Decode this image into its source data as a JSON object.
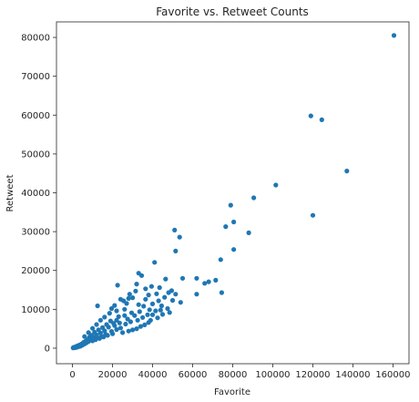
{
  "chart_data": {
    "type": "scatter",
    "title": "Favorite vs. Retweet Counts",
    "xlabel": "Favorite",
    "ylabel": "Retweet",
    "xlim": [
      -8000,
      168000
    ],
    "ylim": [
      -4000,
      84000
    ],
    "xticks": [
      0,
      20000,
      40000,
      60000,
      80000,
      100000,
      120000,
      140000,
      160000
    ],
    "yticks": [
      0,
      10000,
      20000,
      30000,
      40000,
      50000,
      60000,
      70000,
      80000
    ],
    "xtick_labels": [
      "0",
      "20000",
      "40000",
      "60000",
      "80000",
      "100000",
      "120000",
      "140000",
      "160000"
    ],
    "ytick_labels": [
      "0",
      "10000",
      "20000",
      "30000",
      "40000",
      "50000",
      "60000",
      "70000",
      "80000"
    ],
    "grid": false,
    "marker_color": "#1f77b4",
    "points": [
      [
        160500,
        80500
      ],
      [
        119000,
        59800
      ],
      [
        124500,
        58800
      ],
      [
        137000,
        45600
      ],
      [
        101500,
        42000
      ],
      [
        120000,
        34200
      ],
      [
        90500,
        38700
      ],
      [
        79000,
        36800
      ],
      [
        80500,
        32500
      ],
      [
        76500,
        31300
      ],
      [
        88000,
        29700
      ],
      [
        51000,
        30400
      ],
      [
        53500,
        28600
      ],
      [
        51500,
        25000
      ],
      [
        80500,
        25400
      ],
      [
        74000,
        22800
      ],
      [
        41000,
        22100
      ],
      [
        33000,
        19300
      ],
      [
        34500,
        18700
      ],
      [
        22500,
        16200
      ],
      [
        55000,
        18000
      ],
      [
        62000,
        18000
      ],
      [
        71500,
        17500
      ],
      [
        68000,
        17100
      ],
      [
        66000,
        16700
      ],
      [
        46500,
        17800
      ],
      [
        43500,
        15600
      ],
      [
        49500,
        14800
      ],
      [
        48000,
        14300
      ],
      [
        51500,
        13900
      ],
      [
        62000,
        13900
      ],
      [
        74500,
        14300
      ],
      [
        39500,
        15900
      ],
      [
        36500,
        15300
      ],
      [
        31500,
        14700
      ],
      [
        28500,
        13900
      ],
      [
        30000,
        13000
      ],
      [
        25500,
        12200
      ],
      [
        27000,
        11500
      ],
      [
        24000,
        12600
      ],
      [
        21000,
        11000
      ],
      [
        12500,
        10900
      ],
      [
        43000,
        12200
      ],
      [
        40000,
        11400
      ],
      [
        44500,
        10900
      ],
      [
        47500,
        10200
      ],
      [
        41500,
        9600
      ],
      [
        45000,
        8700
      ],
      [
        38500,
        9900
      ],
      [
        35500,
        10800
      ],
      [
        33500,
        9400
      ],
      [
        31000,
        8400
      ],
      [
        29500,
        9100
      ],
      [
        27500,
        7500
      ],
      [
        26000,
        8400
      ],
      [
        23000,
        8100
      ],
      [
        22000,
        7200
      ],
      [
        20500,
        6400
      ],
      [
        19000,
        7000
      ],
      [
        18000,
        5400
      ],
      [
        17000,
        6100
      ],
      [
        16000,
        4500
      ],
      [
        15000,
        5300
      ],
      [
        14000,
        3900
      ],
      [
        13000,
        4700
      ],
      [
        12000,
        3400
      ],
      [
        11000,
        4100
      ],
      [
        10500,
        2800
      ],
      [
        9500,
        3300
      ],
      [
        9000,
        2400
      ],
      [
        8500,
        2800
      ],
      [
        8000,
        1700
      ],
      [
        7500,
        2200
      ],
      [
        7000,
        1400
      ],
      [
        6500,
        1800
      ],
      [
        6000,
        1100
      ],
      [
        5500,
        1500
      ],
      [
        5000,
        800
      ],
      [
        4500,
        1100
      ],
      [
        4000,
        500
      ],
      [
        3500,
        800
      ],
      [
        3000,
        400
      ],
      [
        2500,
        600
      ],
      [
        2000,
        200
      ],
      [
        1500,
        400
      ],
      [
        1000,
        100
      ],
      [
        500,
        200
      ],
      [
        300,
        50
      ],
      [
        38000,
        6600
      ],
      [
        36000,
        6000
      ],
      [
        34000,
        5600
      ],
      [
        32000,
        5000
      ],
      [
        30000,
        4700
      ],
      [
        28000,
        4400
      ],
      [
        25000,
        4000
      ],
      [
        24000,
        5200
      ],
      [
        22000,
        4800
      ],
      [
        20000,
        3700
      ],
      [
        19500,
        4300
      ],
      [
        17500,
        3300
      ],
      [
        16500,
        3600
      ],
      [
        15500,
        2900
      ],
      [
        14500,
        3000
      ],
      [
        13500,
        2500
      ],
      [
        12500,
        2700
      ],
      [
        11500,
        2200
      ],
      [
        10000,
        1900
      ],
      [
        21000,
        5800
      ],
      [
        23500,
        6500
      ],
      [
        26500,
        6200
      ],
      [
        29000,
        6800
      ],
      [
        32500,
        7200
      ],
      [
        35000,
        7900
      ],
      [
        37500,
        8600
      ],
      [
        26000,
        10000
      ],
      [
        18500,
        9000
      ],
      [
        16000,
        8000
      ],
      [
        14000,
        7200
      ],
      [
        12000,
        6100
      ],
      [
        10000,
        5100
      ],
      [
        8000,
        4000
      ],
      [
        6000,
        3000
      ],
      [
        22000,
        9600
      ],
      [
        19500,
        10200
      ],
      [
        28000,
        12800
      ],
      [
        33000,
        11200
      ],
      [
        36500,
        12600
      ],
      [
        38000,
        13700
      ],
      [
        42000,
        14000
      ],
      [
        46000,
        13100
      ],
      [
        50000,
        12300
      ],
      [
        54000,
        11800
      ],
      [
        32000,
        16500
      ],
      [
        44000,
        9800
      ],
      [
        48500,
        9200
      ],
      [
        40000,
        8600
      ],
      [
        42500,
        7800
      ],
      [
        39000,
        7200
      ]
    ]
  }
}
